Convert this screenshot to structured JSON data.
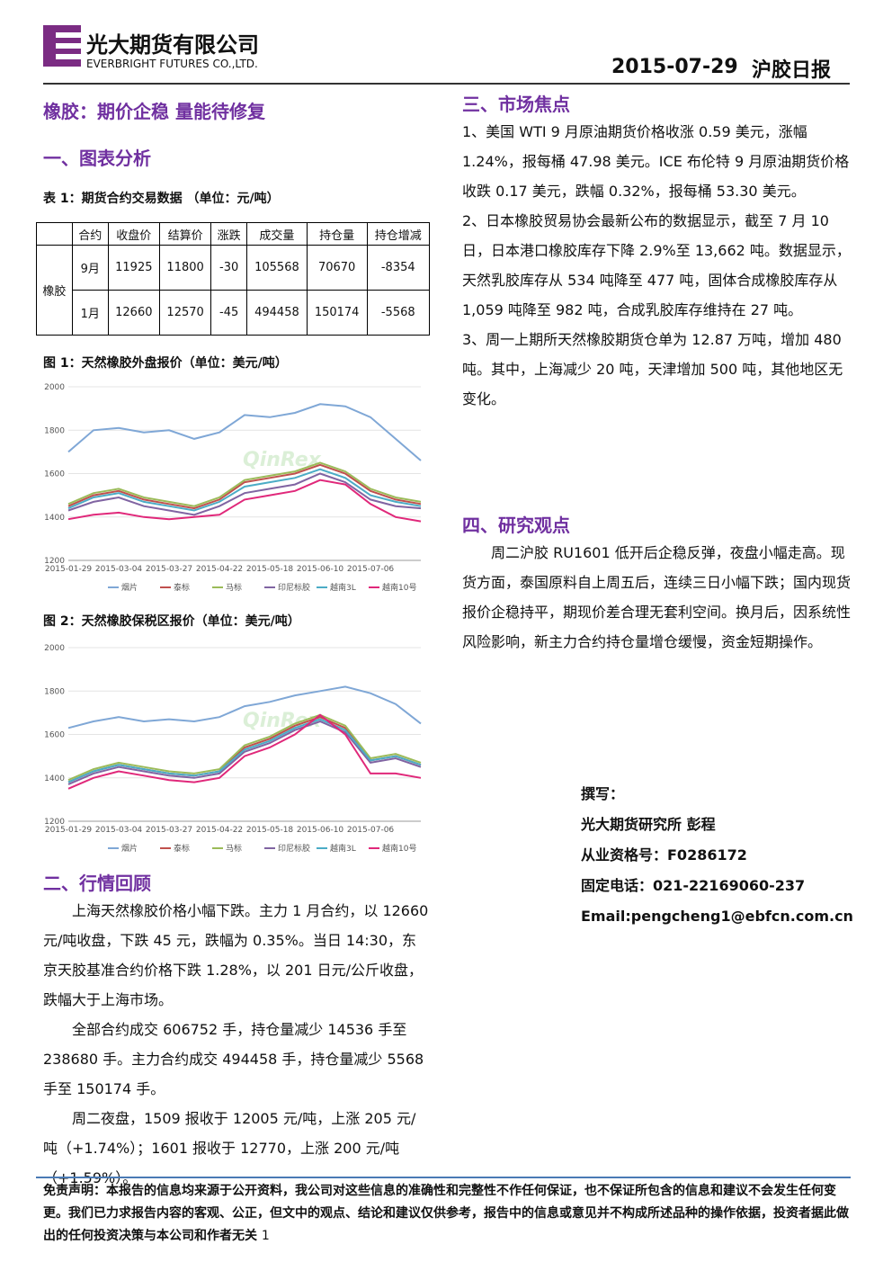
{
  "header": {
    "company_cn": "光大期货有限公司",
    "company_en": "EVERBRIGHT FUTURES CO.,LTD.",
    "date": "2015-07-29",
    "report": "沪胶日报"
  },
  "headline": "橡胶：期价企稳 量能待修复",
  "section1": {
    "title": "一、图表分析",
    "table_caption": "表 1：期货合约交易数据 （单位：元/吨）",
    "table": {
      "columns": [
        "合约",
        "收盘价",
        "结算价",
        "涨跌",
        "成交量",
        "持仓量",
        "持仓增减"
      ],
      "group": "橡胶",
      "rows": [
        [
          "9月",
          11925,
          11800,
          -30,
          105568,
          70670,
          -8354
        ],
        [
          "1月",
          12660,
          12570,
          -45,
          494458,
          150174,
          -5568
        ]
      ]
    },
    "fig1_caption": "图 1：天然橡胶外盘报价（单位：美元/吨）",
    "fig2_caption": "图 2：天然橡胶保税区报价（单位：美元/吨）"
  },
  "chart_data": [
    {
      "type": "line",
      "watermark": "QinRex",
      "ylim": [
        1200,
        2000
      ],
      "yticks": [
        1200,
        1400,
        1600,
        1800,
        2000
      ],
      "categories": [
        "2015-01-29",
        null,
        "2015-03-04",
        null,
        "2015-03-27",
        null,
        "2015-04-22",
        null,
        "2015-05-18",
        null,
        "2015-06-10",
        null,
        "2015-07-06",
        null,
        null
      ],
      "series": [
        {
          "name": "烟片",
          "color": "#7fa7d6",
          "values": [
            1700,
            1800,
            1810,
            1790,
            1800,
            1760,
            1790,
            1870,
            1860,
            1880,
            1920,
            1910,
            1860,
            1760,
            1660
          ]
        },
        {
          "name": "泰标",
          "color": "#c0504d",
          "values": [
            1450,
            1500,
            1520,
            1480,
            1460,
            1440,
            1480,
            1560,
            1580,
            1600,
            1640,
            1600,
            1520,
            1480,
            1460
          ]
        },
        {
          "name": "马标",
          "color": "#9bbb59",
          "values": [
            1460,
            1510,
            1530,
            1490,
            1470,
            1450,
            1490,
            1570,
            1590,
            1610,
            1650,
            1610,
            1530,
            1490,
            1470
          ]
        },
        {
          "name": "印尼标胶",
          "color": "#8064a2",
          "values": [
            1430,
            1470,
            1490,
            1450,
            1430,
            1410,
            1450,
            1510,
            1530,
            1550,
            1600,
            1560,
            1480,
            1450,
            1440
          ]
        },
        {
          "name": "越南3L",
          "color": "#4bacc6",
          "values": [
            1440,
            1490,
            1510,
            1470,
            1450,
            1430,
            1470,
            1540,
            1560,
            1580,
            1620,
            1580,
            1500,
            1470,
            1450
          ]
        },
        {
          "name": "越南10号",
          "color": "#e0287a",
          "values": [
            1390,
            1410,
            1420,
            1400,
            1390,
            1400,
            1410,
            1480,
            1500,
            1520,
            1570,
            1550,
            1460,
            1400,
            1380
          ]
        }
      ]
    },
    {
      "type": "line",
      "watermark": "QinRex",
      "ylim": [
        1200,
        2000
      ],
      "yticks": [
        1200,
        1400,
        1600,
        1800,
        2000
      ],
      "categories": [
        "2015-01-29",
        null,
        "2015-03-04",
        null,
        "2015-03-27",
        null,
        "2015-04-22",
        null,
        "2015-05-18",
        null,
        "2015-06-10",
        null,
        "2015-07-06",
        null,
        null
      ],
      "series": [
        {
          "name": "烟片",
          "color": "#7fa7d6",
          "values": [
            1630,
            1660,
            1680,
            1660,
            1670,
            1660,
            1680,
            1730,
            1750,
            1780,
            1800,
            1820,
            1790,
            1740,
            1650
          ]
        },
        {
          "name": "泰标",
          "color": "#c0504d",
          "values": [
            1380,
            1430,
            1460,
            1440,
            1420,
            1410,
            1430,
            1540,
            1580,
            1640,
            1680,
            1630,
            1480,
            1500,
            1460
          ]
        },
        {
          "name": "马标",
          "color": "#9bbb59",
          "values": [
            1390,
            1440,
            1470,
            1450,
            1430,
            1420,
            1440,
            1550,
            1590,
            1650,
            1690,
            1640,
            1490,
            1510,
            1470
          ]
        },
        {
          "name": "印尼标胶",
          "color": "#8064a2",
          "values": [
            1370,
            1420,
            1450,
            1430,
            1410,
            1400,
            1420,
            1520,
            1560,
            1620,
            1660,
            1610,
            1470,
            1490,
            1450
          ]
        },
        {
          "name": "越南3L",
          "color": "#4bacc6",
          "values": [
            1380,
            1430,
            1460,
            1440,
            1420,
            1410,
            1430,
            1530,
            1570,
            1630,
            1670,
            1620,
            1480,
            1500,
            1460
          ]
        },
        {
          "name": "越南10号",
          "color": "#e0287a",
          "values": [
            1350,
            1400,
            1430,
            1410,
            1390,
            1380,
            1400,
            1500,
            1540,
            1600,
            1690,
            1600,
            1420,
            1420,
            1400
          ]
        }
      ]
    }
  ],
  "section2": {
    "title": "二、行情回顾",
    "paragraphs": [
      "上海天然橡胶价格小幅下跌。主力 1 月合约，以 12660 元/吨收盘，下跌 45 元，跌幅为 0.35%。当日 14:30，东京天胶基准合约价格下跌 1.28%，以 201 日元/公斤收盘，跌幅大于上海市场。",
      "全部合约成交 606752 手，持仓量减少 14536 手至 238680 手。主力合约成交 494458 手，持仓量减少 5568 手至 150174 手。",
      "周二夜盘，1509 报收于 12005 元/吨，上涨 205 元/吨（+1.74%）；1601 报收于 12770，上涨 200 元/吨（+1.59%）。"
    ]
  },
  "section3": {
    "title": "三、市场焦点",
    "items": [
      "1、美国 WTI 9 月原油期货价格收涨 0.59 美元，涨幅 1.24%，报每桶 47.98 美元。ICE 布伦特 9 月原油期货价格收跌 0.17 美元，跌幅 0.32%，报每桶 53.30 美元。",
      "2、日本橡胶贸易协会最新公布的数据显示，截至 7 月 10 日，日本港口橡胶库存下降 2.9%至 13,662 吨。数据显示，天然乳胶库存从 534 吨降至 477 吨，固体合成橡胶库存从 1,059 吨降至 982 吨，合成乳胶库存维持在 27 吨。",
      "3、周一上期所天然橡胶期货仓单为 12.87 万吨，增加 480 吨。其中，上海减少 20 吨，天津增加 500 吨，其他地区无变化。"
    ]
  },
  "section4": {
    "title": "四、研究观点",
    "paragraph": "周二沪胶 RU1601 低开后企稳反弹，夜盘小幅走高。现货方面，泰国原料自上周五后，连续三日小幅下跌；国内现货报价企稳持平，期现价差合理无套利空间。换月后，因系统性风险影响，新主力合约持仓量增仓缓慢，资金短期操作。"
  },
  "author": [
    "撰写：",
    "光大期货研究所 彭程",
    "从业资格号：F0286172",
    "固定电话：021-22169060-237",
    "Email:pengcheng1@ebfcn.com.cn"
  ],
  "footer": {
    "disclaimer": "免责声明：本报告的信息均来源于公开资料，我公司对这些信息的准确性和完整性不作任何保证，也不保证所包含的信息和建议不会发生任何变更。我们已力求报告内容的客观、公正，但文中的观点、结论和建议仅供参考，报告中的信息或意见并不构成所述品种的操作依据，投资者据此做出的任何投资决策与本公司和作者无关",
    "page": "1"
  }
}
